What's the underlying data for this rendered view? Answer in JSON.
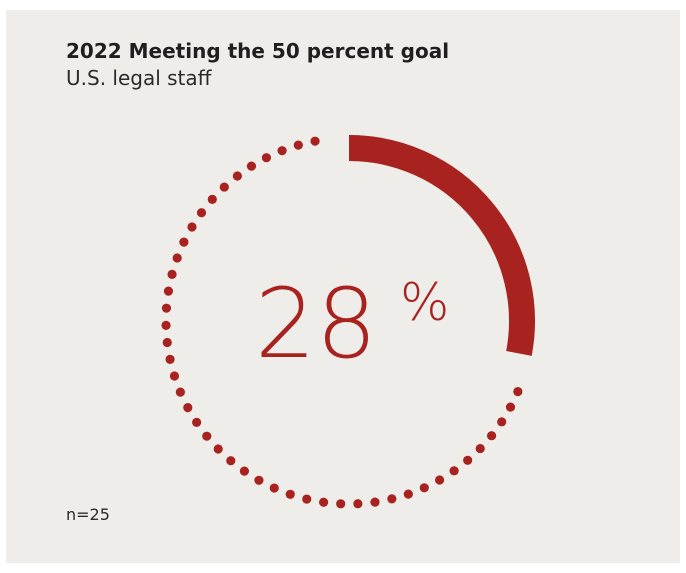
{
  "chart_data": {
    "type": "pie",
    "title": "2022 Meeting the 50 percent goal",
    "subtitle": "U.S. legal staff",
    "value": 28,
    "value_label": "28",
    "unit_label": "%",
    "max": 100,
    "note": "n=25",
    "colors": {
      "accent": "#a8231f",
      "background": "#eeede9"
    }
  }
}
